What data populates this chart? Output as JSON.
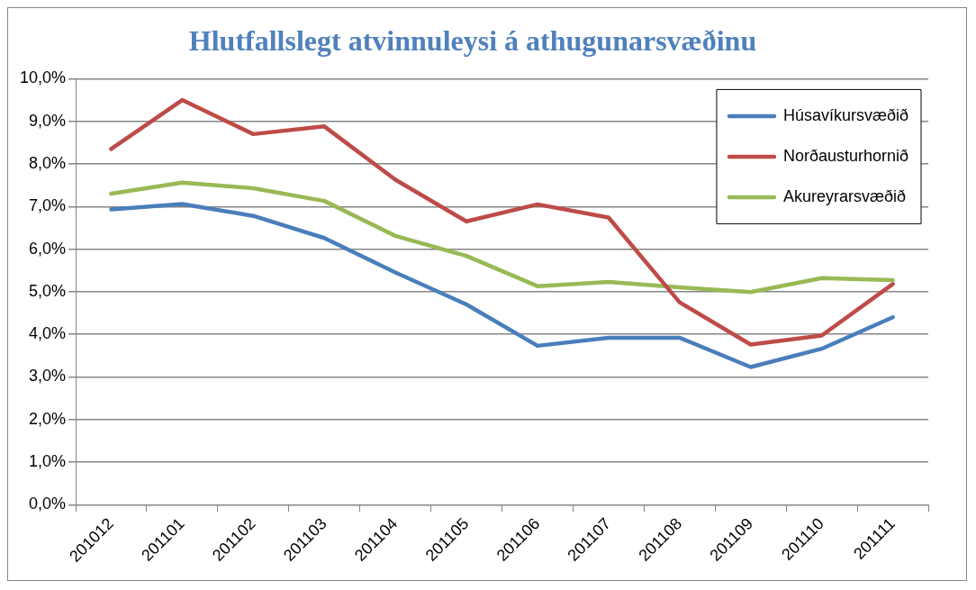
{
  "chart_data": {
    "type": "line",
    "title": "Hlutfallslegt atvinnuleysi á athugunarsvæðinu",
    "categories": [
      "201012",
      "201101",
      "201102",
      "201103",
      "201104",
      "201105",
      "201106",
      "201107",
      "201108",
      "201109",
      "201110",
      "201111"
    ],
    "series": [
      {
        "name": "Húsavíkursvæðið",
        "color": "#4a7ebb",
        "values": [
          6.93,
          7.06,
          6.78,
          6.26,
          5.45,
          4.7,
          3.73,
          3.92,
          3.92,
          3.23,
          3.66,
          4.4
        ]
      },
      {
        "name": "Norðausturhornið",
        "color": "#be4b48",
        "values": [
          8.35,
          9.5,
          8.7,
          8.88,
          7.63,
          6.65,
          7.05,
          6.74,
          4.75,
          3.76,
          3.97,
          5.18
        ]
      },
      {
        "name": "Akureyrarsvæðið",
        "color": "#98b954",
        "values": [
          7.3,
          7.56,
          7.43,
          7.13,
          6.31,
          5.84,
          5.13,
          5.23,
          5.1,
          4.99,
          5.32,
          5.27
        ]
      }
    ],
    "ylim": [
      0,
      10
    ],
    "yticks": [
      {
        "value": 0,
        "label": "0,0%"
      },
      {
        "value": 1,
        "label": "1,0%"
      },
      {
        "value": 2,
        "label": "2,0%"
      },
      {
        "value": 3,
        "label": "3,0%"
      },
      {
        "value": 4,
        "label": "4,0%"
      },
      {
        "value": 5,
        "label": "5,0%"
      },
      {
        "value": 6,
        "label": "6,0%"
      },
      {
        "value": 7,
        "label": "7,0%"
      },
      {
        "value": 8,
        "label": "8,0%"
      },
      {
        "value": 9,
        "label": "9,0%"
      },
      {
        "value": 10,
        "label": "10,0%"
      }
    ],
    "grid": "y",
    "legend": "top right",
    "marker": "none",
    "line_style": "solid"
  }
}
